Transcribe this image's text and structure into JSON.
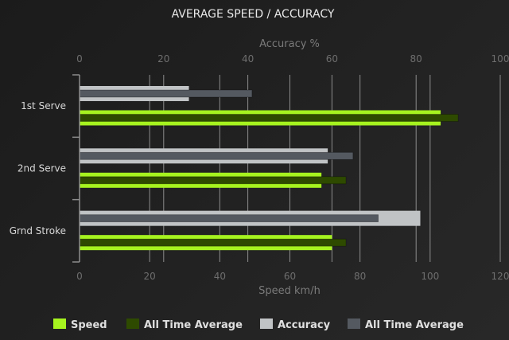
{
  "chart_data": {
    "type": "bar",
    "orientation": "horizontal",
    "title": "AVERAGE SPEED / ACCURACY",
    "categories": [
      "1st Serve",
      "2nd Serve",
      "Grnd Stroke"
    ],
    "x_axis_bottom": {
      "label": "Speed km/h",
      "range": [
        0,
        120
      ],
      "ticks": [
        0,
        20,
        40,
        60,
        80,
        100,
        120
      ]
    },
    "x_axis_top": {
      "label": "Accuracy %",
      "range": [
        0,
        100
      ],
      "ticks": [
        0,
        20,
        40,
        60,
        80,
        100
      ]
    },
    "grid": true,
    "legend_position": "bottom",
    "series": [
      {
        "name": "Speed",
        "axis": "bottom",
        "color": "#a6f31f",
        "values": [
          103,
          69,
          72
        ]
      },
      {
        "name": "All Time Average",
        "axis": "bottom",
        "color": "#2e4a00",
        "values": [
          108,
          76,
          76
        ]
      },
      {
        "name": "Accuracy",
        "axis": "top",
        "color": "#c0c3c5",
        "values": [
          26,
          59,
          81
        ]
      },
      {
        "name": "All Time Average",
        "axis": "top",
        "color": "#545960",
        "values": [
          41,
          65,
          71
        ]
      }
    ]
  }
}
